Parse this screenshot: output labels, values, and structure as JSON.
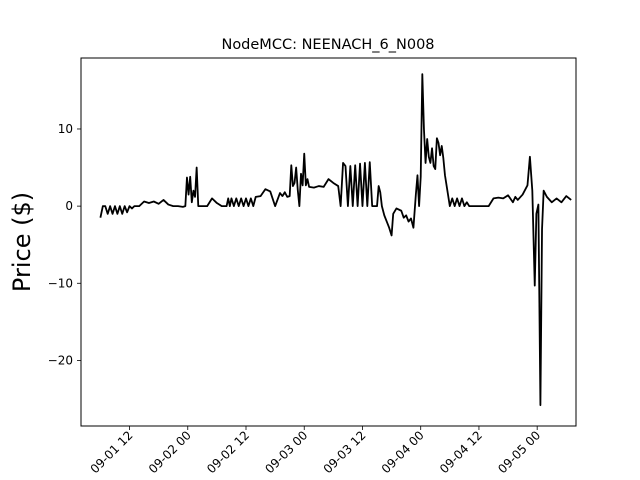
{
  "chart_data": {
    "type": "line",
    "title": "NodeMCC: NEENACH_6_N008",
    "xlabel": "",
    "ylabel": "Price ($)",
    "grid": false,
    "x_axis": {
      "type": "datetime",
      "range": [
        "2021-09-01 02:00",
        "2021-09-05 08:00"
      ],
      "ticks": [
        {
          "value": "2021-09-01 12:00",
          "label": "09-01 12"
        },
        {
          "value": "2021-09-02 00:00",
          "label": "09-02 00"
        },
        {
          "value": "2021-09-02 12:00",
          "label": "09-02 12"
        },
        {
          "value": "2021-09-03 00:00",
          "label": "09-03 00"
        },
        {
          "value": "2021-09-03 12:00",
          "label": "09-03 12"
        },
        {
          "value": "2021-09-04 00:00",
          "label": "09-04 00"
        },
        {
          "value": "2021-09-04 12:00",
          "label": "09-04 12"
        },
        {
          "value": "2021-09-05 00:00",
          "label": "09-05 00"
        }
      ]
    },
    "y_axis": {
      "range": [
        -28.5,
        19.2
      ],
      "ticks": [
        {
          "value": 10,
          "label": "10"
        },
        {
          "value": 0,
          "label": "0"
        },
        {
          "value": -10,
          "label": "−10"
        },
        {
          "value": -20,
          "label": "−20"
        }
      ]
    },
    "series": [
      {
        "color": "#000000",
        "points": [
          [
            "2021-09-01 06:00",
            -1.5
          ],
          [
            "2021-09-01 06:30",
            0.0
          ],
          [
            "2021-09-01 07:00",
            0.0
          ],
          [
            "2021-09-01 07:30",
            -1.0
          ],
          [
            "2021-09-01 08:00",
            0.0
          ],
          [
            "2021-09-01 08:30",
            -1.0
          ],
          [
            "2021-09-01 09:00",
            0.0
          ],
          [
            "2021-09-01 09:30",
            -1.0
          ],
          [
            "2021-09-01 10:00",
            0.0
          ],
          [
            "2021-09-01 10:30",
            -1.0
          ],
          [
            "2021-09-01 11:00",
            0.0
          ],
          [
            "2021-09-01 11:30",
            -0.8
          ],
          [
            "2021-09-01 12:00",
            0.0
          ],
          [
            "2021-09-01 12:30",
            -0.3
          ],
          [
            "2021-09-01 13:00",
            0.0
          ],
          [
            "2021-09-01 14:00",
            0.0
          ],
          [
            "2021-09-01 15:00",
            0.6
          ],
          [
            "2021-09-01 16:00",
            0.4
          ],
          [
            "2021-09-01 17:00",
            0.6
          ],
          [
            "2021-09-01 18:00",
            0.3
          ],
          [
            "2021-09-01 19:00",
            0.8
          ],
          [
            "2021-09-01 20:00",
            0.2
          ],
          [
            "2021-09-01 21:00",
            0.0
          ],
          [
            "2021-09-01 22:00",
            0.0
          ],
          [
            "2021-09-01 23:00",
            -0.1
          ],
          [
            "2021-09-01 23:30",
            0.0
          ],
          [
            "2021-09-01 23:50",
            3.7
          ],
          [
            "2021-09-02 00:10",
            1.5
          ],
          [
            "2021-09-02 00:30",
            3.8
          ],
          [
            "2021-09-02 00:50",
            0.5
          ],
          [
            "2021-09-02 01:10",
            2.0
          ],
          [
            "2021-09-02 01:30",
            1.2
          ],
          [
            "2021-09-02 01:50",
            5.0
          ],
          [
            "2021-09-02 02:10",
            0.0
          ],
          [
            "2021-09-02 03:00",
            0.0
          ],
          [
            "2021-09-02 04:00",
            0.0
          ],
          [
            "2021-09-02 05:00",
            1.0
          ],
          [
            "2021-09-02 06:00",
            0.4
          ],
          [
            "2021-09-02 07:00",
            0.0
          ],
          [
            "2021-09-02 08:00",
            0.0
          ],
          [
            "2021-09-02 08:20",
            1.0
          ],
          [
            "2021-09-02 08:40",
            0.0
          ],
          [
            "2021-09-02 09:00",
            1.0
          ],
          [
            "2021-09-02 09:30",
            0.0
          ],
          [
            "2021-09-02 10:00",
            1.0
          ],
          [
            "2021-09-02 10:30",
            0.0
          ],
          [
            "2021-09-02 11:00",
            1.0
          ],
          [
            "2021-09-02 11:30",
            0.0
          ],
          [
            "2021-09-02 12:00",
            1.0
          ],
          [
            "2021-09-02 12:30",
            0.0
          ],
          [
            "2021-09-02 13:00",
            1.0
          ],
          [
            "2021-09-02 13:30",
            0.0
          ],
          [
            "2021-09-02 14:00",
            1.2
          ],
          [
            "2021-09-02 15:00",
            1.3
          ],
          [
            "2021-09-02 16:00",
            2.2
          ],
          [
            "2021-09-02 17:00",
            1.9
          ],
          [
            "2021-09-02 18:00",
            0.0
          ],
          [
            "2021-09-02 19:00",
            1.7
          ],
          [
            "2021-09-02 19:30",
            1.3
          ],
          [
            "2021-09-02 20:00",
            1.8
          ],
          [
            "2021-09-02 20:30",
            1.2
          ],
          [
            "2021-09-02 21:00",
            1.3
          ],
          [
            "2021-09-02 21:20",
            5.3
          ],
          [
            "2021-09-02 21:40",
            2.6
          ],
          [
            "2021-09-02 22:00",
            3.0
          ],
          [
            "2021-09-02 22:20",
            5.0
          ],
          [
            "2021-09-02 22:40",
            2.1
          ],
          [
            "2021-09-02 23:00",
            0.0
          ],
          [
            "2021-09-02 23:20",
            4.2
          ],
          [
            "2021-09-02 23:40",
            2.7
          ],
          [
            "2021-09-03 00:00",
            6.8
          ],
          [
            "2021-09-03 00:20",
            2.7
          ],
          [
            "2021-09-03 00:40",
            3.5
          ],
          [
            "2021-09-03 01:00",
            2.5
          ],
          [
            "2021-09-03 02:00",
            2.4
          ],
          [
            "2021-09-03 03:00",
            2.6
          ],
          [
            "2021-09-03 04:00",
            2.5
          ],
          [
            "2021-09-03 05:00",
            3.5
          ],
          [
            "2021-09-03 06:00",
            3.0
          ],
          [
            "2021-09-03 07:00",
            2.6
          ],
          [
            "2021-09-03 07:30",
            0.0
          ],
          [
            "2021-09-03 08:00",
            5.6
          ],
          [
            "2021-09-03 08:30",
            5.2
          ],
          [
            "2021-09-03 09:00",
            0.0
          ],
          [
            "2021-09-03 09:30",
            5.2
          ],
          [
            "2021-09-03 10:00",
            0.0
          ],
          [
            "2021-09-03 10:30",
            5.3
          ],
          [
            "2021-09-03 11:00",
            0.0
          ],
          [
            "2021-09-03 11:30",
            5.5
          ],
          [
            "2021-09-03 12:00",
            0.0
          ],
          [
            "2021-09-03 12:30",
            5.6
          ],
          [
            "2021-09-03 13:00",
            0.0
          ],
          [
            "2021-09-03 13:30",
            5.7
          ],
          [
            "2021-09-03 14:00",
            0.0
          ],
          [
            "2021-09-03 15:00",
            0.0
          ],
          [
            "2021-09-03 15:20",
            2.6
          ],
          [
            "2021-09-03 15:40",
            1.8
          ],
          [
            "2021-09-03 16:00",
            0.0
          ],
          [
            "2021-09-03 16:30",
            -1.2
          ],
          [
            "2021-09-03 17:00",
            -2.0
          ],
          [
            "2021-09-03 17:30",
            -2.8
          ],
          [
            "2021-09-03 18:00",
            -3.8
          ],
          [
            "2021-09-03 18:20",
            -1.0
          ],
          [
            "2021-09-03 19:00",
            -0.3
          ],
          [
            "2021-09-03 20:00",
            -0.6
          ],
          [
            "2021-09-03 20:30",
            -1.5
          ],
          [
            "2021-09-03 21:00",
            -1.2
          ],
          [
            "2021-09-03 21:30",
            -2.0
          ],
          [
            "2021-09-03 22:00",
            -1.6
          ],
          [
            "2021-09-03 22:30",
            -2.8
          ],
          [
            "2021-09-03 23:00",
            1.5
          ],
          [
            "2021-09-03 23:20",
            4.0
          ],
          [
            "2021-09-03 23:40",
            0.0
          ],
          [
            "2021-09-04 00:00",
            3.8
          ],
          [
            "2021-09-04 00:20",
            17.1
          ],
          [
            "2021-09-04 00:40",
            10.0
          ],
          [
            "2021-09-04 01:00",
            5.6
          ],
          [
            "2021-09-04 01:20",
            8.7
          ],
          [
            "2021-09-04 01:40",
            6.4
          ],
          [
            "2021-09-04 02:00",
            5.6
          ],
          [
            "2021-09-04 02:20",
            7.5
          ],
          [
            "2021-09-04 02:40",
            5.2
          ],
          [
            "2021-09-04 03:00",
            4.8
          ],
          [
            "2021-09-04 03:20",
            8.8
          ],
          [
            "2021-09-04 03:40",
            8.2
          ],
          [
            "2021-09-04 04:00",
            6.6
          ],
          [
            "2021-09-04 04:20",
            7.8
          ],
          [
            "2021-09-04 04:40",
            6.2
          ],
          [
            "2021-09-04 05:00",
            4.0
          ],
          [
            "2021-09-04 06:00",
            0.0
          ],
          [
            "2021-09-04 06:30",
            1.0
          ],
          [
            "2021-09-04 07:00",
            0.0
          ],
          [
            "2021-09-04 07:30",
            1.0
          ],
          [
            "2021-09-04 08:00",
            0.0
          ],
          [
            "2021-09-04 08:30",
            1.0
          ],
          [
            "2021-09-04 09:00",
            0.0
          ],
          [
            "2021-09-04 09:30",
            0.5
          ],
          [
            "2021-09-04 10:00",
            0.0
          ],
          [
            "2021-09-04 12:00",
            0.0
          ],
          [
            "2021-09-04 14:00",
            0.0
          ],
          [
            "2021-09-04 15:00",
            1.0
          ],
          [
            "2021-09-04 16:00",
            1.1
          ],
          [
            "2021-09-04 17:00",
            1.0
          ],
          [
            "2021-09-04 18:00",
            1.4
          ],
          [
            "2021-09-04 19:00",
            0.5
          ],
          [
            "2021-09-04 19:30",
            1.2
          ],
          [
            "2021-09-04 20:00",
            0.8
          ],
          [
            "2021-09-04 21:00",
            1.5
          ],
          [
            "2021-09-04 22:00",
            2.7
          ],
          [
            "2021-09-04 22:30",
            6.4
          ],
          [
            "2021-09-04 23:00",
            2.0
          ],
          [
            "2021-09-04 23:30",
            -10.3
          ],
          [
            "2021-09-04 23:50",
            -1.0
          ],
          [
            "2021-09-05 00:15",
            0.2
          ],
          [
            "2021-09-05 00:40",
            -25.8
          ],
          [
            "2021-09-05 01:00",
            -3.0
          ],
          [
            "2021-09-05 01:20",
            2.0
          ],
          [
            "2021-09-05 02:00",
            1.2
          ],
          [
            "2021-09-05 03:00",
            0.5
          ],
          [
            "2021-09-05 04:00",
            1.0
          ],
          [
            "2021-09-05 05:00",
            0.5
          ],
          [
            "2021-09-05 06:00",
            1.3
          ],
          [
            "2021-09-05 07:00",
            0.8
          ]
        ]
      }
    ]
  }
}
